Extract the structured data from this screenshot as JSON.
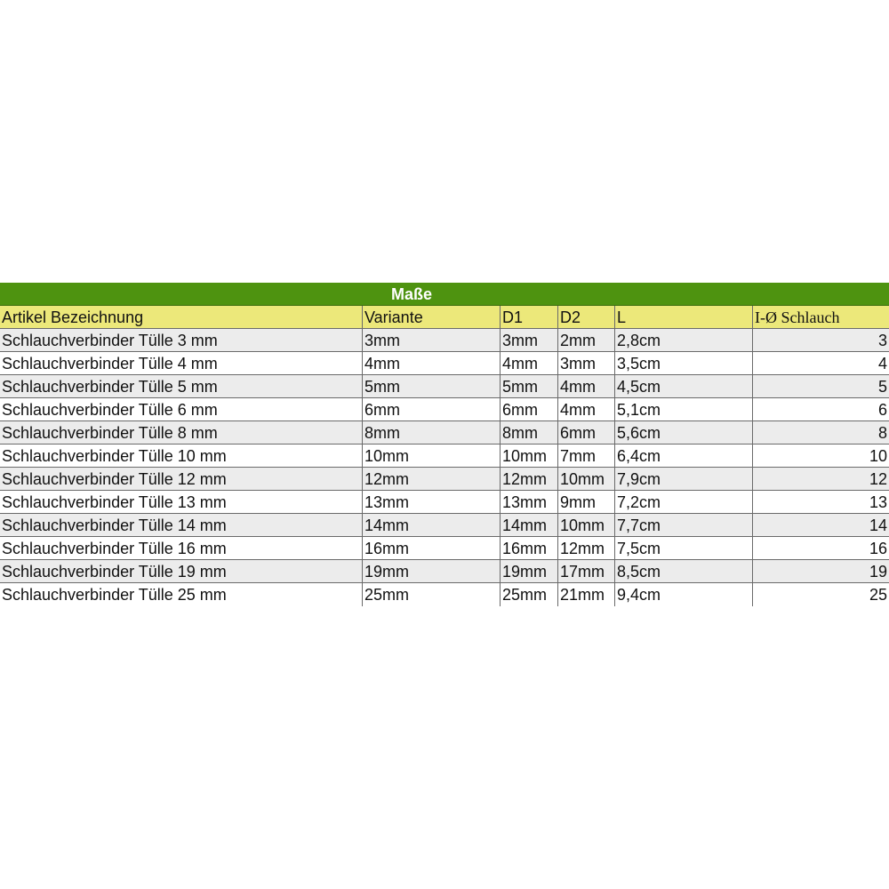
{
  "table": {
    "title": "Maße",
    "headers": [
      "Artikel Bezeichnung",
      "Variante",
      "D1",
      "D2",
      "L",
      "I-Ø Schlauch"
    ],
    "rows": [
      [
        "Schlauchverbinder Tülle 3 mm",
        "3mm",
        "3mm",
        "2mm",
        "2,8cm",
        "3"
      ],
      [
        "Schlauchverbinder Tülle 4 mm",
        "4mm",
        "4mm",
        "3mm",
        "3,5cm",
        "4"
      ],
      [
        "Schlauchverbinder Tülle 5 mm",
        "5mm",
        "5mm",
        "4mm",
        "4,5cm",
        "5"
      ],
      [
        "Schlauchverbinder Tülle 6 mm",
        "6mm",
        "6mm",
        "4mm",
        "5,1cm",
        "6"
      ],
      [
        "Schlauchverbinder Tülle 8 mm",
        "8mm",
        "8mm",
        "6mm",
        "5,6cm",
        "8"
      ],
      [
        "Schlauchverbinder Tülle 10 mm",
        "10mm",
        "10mm",
        "7mm",
        "6,4cm",
        "10"
      ],
      [
        "Schlauchverbinder Tülle 12 mm",
        "12mm",
        "12mm",
        "10mm",
        "7,9cm",
        "12"
      ],
      [
        "Schlauchverbinder Tülle 13 mm",
        "13mm",
        "13mm",
        "9mm",
        "7,2cm",
        "13"
      ],
      [
        "Schlauchverbinder Tülle 14 mm",
        "14mm",
        "14mm",
        "10mm",
        "7,7cm",
        "14"
      ],
      [
        "Schlauchverbinder Tülle 16 mm",
        "16mm",
        "16mm",
        "12mm",
        "7,5cm",
        "16"
      ],
      [
        "Schlauchverbinder Tülle 19 mm",
        "19mm",
        "19mm",
        "17mm",
        "8,5cm",
        "19"
      ],
      [
        "Schlauchverbinder Tülle 25 mm",
        "25mm",
        "25mm",
        "21mm",
        "9,4cm",
        "25"
      ]
    ]
  },
  "colors": {
    "title_bg": "#4e9310",
    "header_bg": "#ece87a",
    "stripe_bg": "#ececec"
  }
}
